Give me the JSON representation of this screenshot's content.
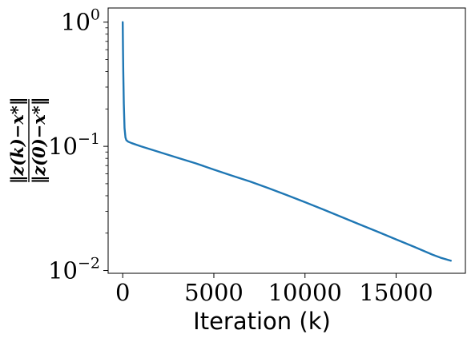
{
  "chart_data": {
    "type": "line",
    "title": "",
    "xlabel": "Iteration (k)",
    "ylabel": "‖z(k)−x*‖ / ‖z(0)−x*‖",
    "ylabel_numerator": "‖z(k)−x*‖",
    "ylabel_denominator": "‖z(0)−x*‖",
    "xlim": [
      -800,
      18800
    ],
    "ylim": [
      0.0095,
      1.3
    ],
    "yscale": "log",
    "grid": false,
    "x_ticks": [
      0,
      5000,
      10000,
      15000
    ],
    "x_tick_labels": [
      "0",
      "5000",
      "10000",
      "15000"
    ],
    "y_major_ticks": [
      0.01,
      0.1,
      1
    ],
    "y_tick_labels": [
      {
        "base": "10",
        "exp": "−2"
      },
      {
        "base": "10",
        "exp": "−1"
      },
      {
        "base": "10",
        "exp": "0"
      }
    ],
    "series": [
      {
        "color": "#1f77b4",
        "x": [
          0,
          15,
          30,
          60,
          100,
          150,
          200,
          300,
          500,
          1000,
          2000,
          3000,
          4000,
          5000,
          6000,
          7000,
          8000,
          9000,
          10000,
          11000,
          12000,
          13000,
          14000,
          15000,
          16000,
          17000,
          17500,
          18000
        ],
        "y": [
          1.0,
          0.6,
          0.4,
          0.22,
          0.14,
          0.118,
          0.112,
          0.109,
          0.106,
          0.1,
          0.09,
          0.081,
          0.073,
          0.065,
          0.058,
          0.052,
          0.046,
          0.0405,
          0.0355,
          0.031,
          0.027,
          0.0235,
          0.0205,
          0.0178,
          0.0155,
          0.0134,
          0.0126,
          0.012
        ]
      }
    ]
  }
}
